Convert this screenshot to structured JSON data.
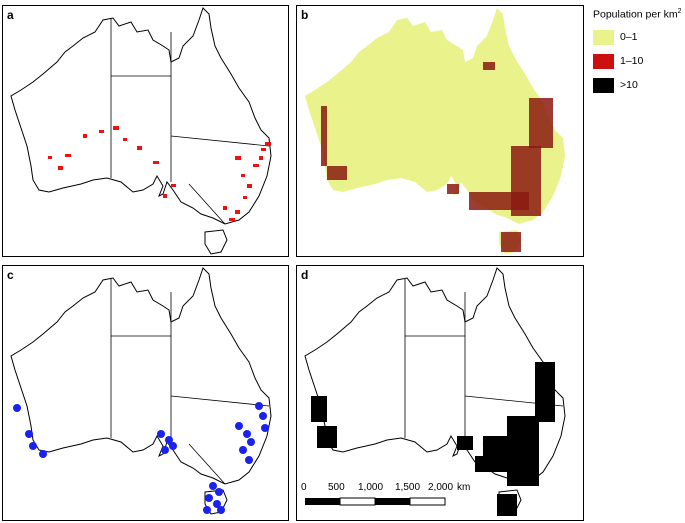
{
  "panels": [
    {
      "label": "a",
      "content": "red-distribution-points"
    },
    {
      "label": "b",
      "content": "population-density"
    },
    {
      "label": "c",
      "content": "blue-site-markers"
    },
    {
      "label": "d",
      "content": "black-range-overlay"
    }
  ],
  "legend": {
    "title": "Population per km",
    "title_superscript": "2",
    "items": [
      {
        "label": "0–1",
        "color": "#eaf28b"
      },
      {
        "label": "1–10",
        "color": "#cc1010"
      },
      {
        "label": ">10",
        "color": "#000000"
      }
    ]
  },
  "scale_bar": {
    "ticks": [
      "0",
      "500",
      "1,000",
      "1,500",
      "2,000"
    ],
    "unit": "km"
  },
  "colors": {
    "outline": "#000000",
    "panel_a_points": "#ee1111",
    "panel_b_fill": "#eaf28b",
    "panel_b_dense": "#8b1a10",
    "panel_c_markers": "#1a22ee",
    "panel_d_overlay": "#000000"
  }
}
